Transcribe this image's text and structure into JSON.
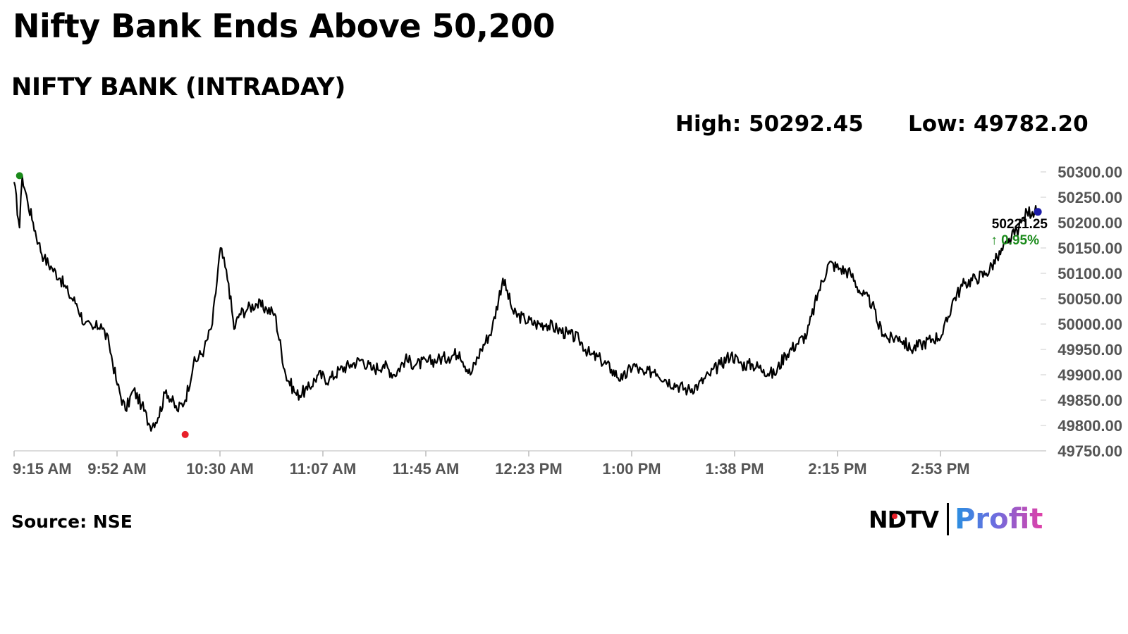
{
  "headline": "Nifty Bank Ends Above 50,200",
  "subtitle": "NIFTY BANK (INTRADAY)",
  "stats": {
    "high_label": "High: 50292.45",
    "low_label": "Low: 49782.20"
  },
  "source": "Source: NSE",
  "logo": {
    "ndtv": "NDTV",
    "profit": "Profit"
  },
  "colors": {
    "line": "#000000",
    "high_marker": "#1a8a1a",
    "low_marker": "#e8202a",
    "last_marker": "#1c1ca8",
    "change_up": "#1a8a1a"
  },
  "chart_data": {
    "type": "line",
    "title": "NIFTY BANK (INTRADAY)",
    "xlabel": "",
    "ylabel": "",
    "x_ticks": [
      "9:15 AM",
      "9:52 AM",
      "10:30 AM",
      "11:07 AM",
      "11:45 AM",
      "12:23 PM",
      "1:00 PM",
      "1:38 PM",
      "2:15 PM",
      "2:53 PM"
    ],
    "y_ticks": [
      "50300.00",
      "50250.00",
      "50200.00",
      "50150.00",
      "50100.00",
      "50050.00",
      "50000.00",
      "49950.00",
      "49900.00",
      "49850.00",
      "49800.00",
      "49750.00"
    ],
    "ylim": [
      49750,
      50300
    ],
    "xlim_minutes": [
      0,
      378
    ],
    "grid": false,
    "series": [
      {
        "values_minutes": [
          0,
          2,
          3,
          5,
          7,
          9,
          11,
          14,
          17,
          20,
          23,
          26,
          29,
          32,
          35,
          38,
          41,
          44,
          47,
          50,
          53,
          56,
          60,
          63,
          66,
          70,
          73,
          76,
          79,
          81,
          83,
          86,
          89,
          93,
          96,
          100,
          104,
          108,
          112,
          116,
          120,
          124,
          128,
          132,
          136,
          140,
          144,
          148,
          152,
          156,
          160,
          164,
          168,
          172,
          176,
          180,
          184,
          188,
          192,
          196,
          200,
          204,
          208,
          212,
          216,
          220,
          224,
          228,
          232,
          236,
          240,
          244,
          248,
          252,
          256,
          260,
          264,
          268,
          272,
          276,
          280,
          284,
          288,
          292,
          296,
          300,
          304,
          308,
          312,
          316,
          318,
          322,
          326,
          330,
          334,
          338,
          342,
          346,
          350,
          354,
          358,
          362,
          366,
          370,
          373,
          375,
          377,
          378
        ],
        "values": [
          50280,
          50190,
          50292,
          50240,
          50200,
          50160,
          50130,
          50110,
          50090,
          50060,
          50040,
          50000,
          49990,
          50000,
          49960,
          49880,
          49830,
          49870,
          49840,
          49800,
          49815,
          49870,
          49830,
          49850,
          49920,
          49950,
          50000,
          50150,
          50080,
          49990,
          50020,
          50030,
          50040,
          50030,
          50020,
          49900,
          49860,
          49870,
          49900,
          49890,
          49910,
          49920,
          49930,
          49910,
          49920,
          49900,
          49930,
          49920,
          49925,
          49930,
          49935,
          49945,
          49900,
          49950,
          49990,
          50090,
          50020,
          50010,
          50000,
          50000,
          49990,
          49980,
          49970,
          49940,
          49930,
          49910,
          49890,
          49920,
          49900,
          49910,
          49890,
          49880,
          49870,
          49880,
          49900,
          49920,
          49940,
          49920,
          49920,
          49910,
          49900,
          49940,
          49960,
          49980,
          50060,
          50120,
          50110,
          50100,
          50060,
          50040,
          50000,
          49970,
          49975,
          49950,
          49960,
          49970,
          49980,
          50050,
          50080,
          50090,
          50100,
          50130,
          50160,
          50190,
          50221.25,
          50221.25,
          50221.25,
          50221.25
        ]
      }
    ],
    "annotations": {
      "high": {
        "minutes": 2,
        "value": 50292.45
      },
      "low": {
        "minutes": 63,
        "value": 49782.2
      },
      "last": {
        "minutes": 377,
        "value": 50221.25,
        "label": "50221.25",
        "change": "↑ 0.95%"
      }
    }
  }
}
